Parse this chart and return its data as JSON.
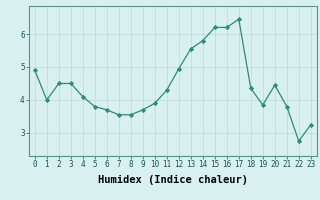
{
  "x": [
    0,
    1,
    2,
    3,
    4,
    5,
    6,
    7,
    8,
    9,
    10,
    11,
    12,
    13,
    14,
    15,
    16,
    17,
    18,
    19,
    20,
    21,
    22,
    23
  ],
  "y": [
    4.9,
    4.0,
    4.5,
    4.5,
    4.1,
    3.8,
    3.7,
    3.55,
    3.55,
    3.7,
    3.9,
    4.3,
    4.95,
    5.55,
    5.8,
    6.2,
    6.2,
    6.45,
    4.35,
    3.85,
    4.45,
    3.8,
    2.75,
    3.25
  ],
  "xlabel": "Humidex (Indice chaleur)",
  "xlim": [
    -0.5,
    23.5
  ],
  "ylim": [
    2.3,
    6.85
  ],
  "yticks": [
    3,
    4,
    5,
    6
  ],
  "xticks": [
    0,
    1,
    2,
    3,
    4,
    5,
    6,
    7,
    8,
    9,
    10,
    11,
    12,
    13,
    14,
    15,
    16,
    17,
    18,
    19,
    20,
    21,
    22,
    23
  ],
  "line_color": "#2e8b7a",
  "marker_color": "#2e8b7a",
  "bg_color": "#d8f0f0",
  "grid_color_major": "#c0d8d8",
  "grid_color_minor": "#c0d8d8",
  "spine_color": "#5a9090",
  "tick_fontsize": 5.5,
  "label_fontsize": 7.5,
  "marker_size": 2.2,
  "linewidth": 0.9
}
